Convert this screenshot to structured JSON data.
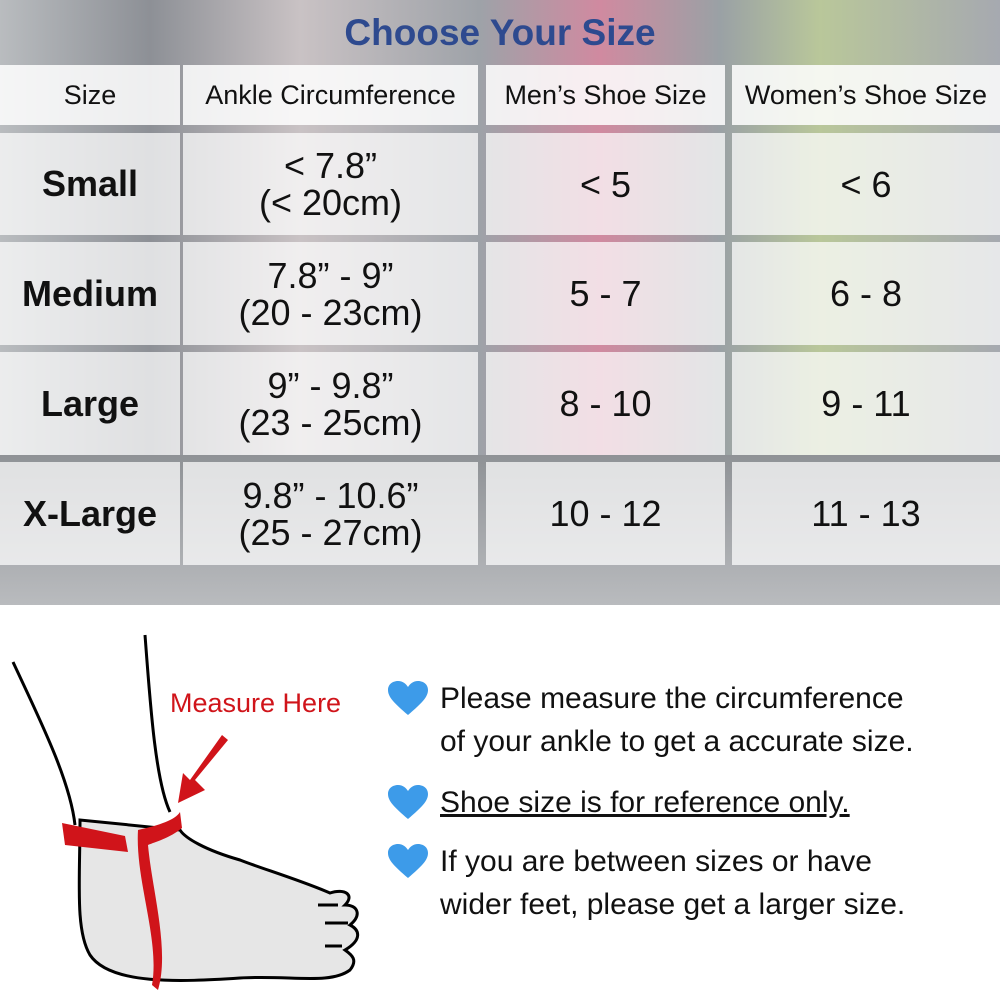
{
  "title": "Choose Your Size",
  "table": {
    "headers": [
      "Size",
      "Ankle Circumference",
      "Men’s Shoe Size",
      "Women’s Shoe Size"
    ],
    "rows": [
      {
        "size": "Small",
        "ankle_in": "< 7.8”",
        "ankle_cm": "(< 20cm)",
        "men": "< 5",
        "women": "< 6"
      },
      {
        "size": "Medium",
        "ankle_in": "7.8” - 9”",
        "ankle_cm": "(20 - 23cm)",
        "men": "5 - 7",
        "women": "6 - 8"
      },
      {
        "size": "Large",
        "ankle_in": "9” - 9.8”",
        "ankle_cm": "(23 - 25cm)",
        "men": "8 - 10",
        "women": "9 - 11"
      },
      {
        "size": "X-Large",
        "ankle_in": "9.8” - 10.6”",
        "ankle_cm": "(25 - 27cm)",
        "men": "10 - 12",
        "women": "11 - 13"
      }
    ]
  },
  "illustration": {
    "label": "Measure Here",
    "strap_color": "#d0141a"
  },
  "notes": [
    {
      "icon": "heart-icon",
      "lines": [
        "Please measure the circumference",
        "of your ankle to get a accurate size."
      ]
    },
    {
      "icon": "heart-icon",
      "lines": [
        "Shoe size is for reference only."
      ]
    },
    {
      "icon": "heart-icon",
      "lines": [
        "If you are between sizes or have",
        "wider feet, please get a larger size."
      ]
    }
  ],
  "colors": {
    "title": "#2e4a8f",
    "heart": "#3d9be9",
    "accent": "#d0141a"
  }
}
